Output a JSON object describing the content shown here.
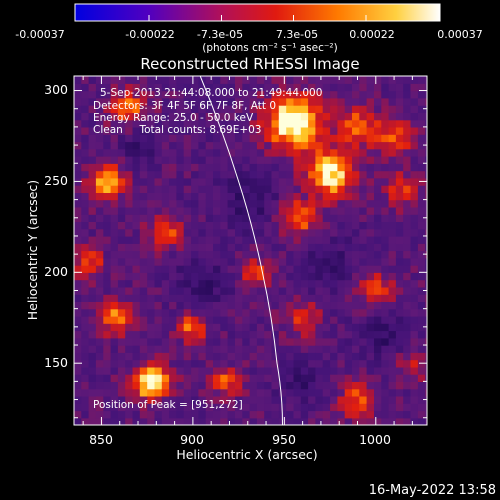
{
  "colorbar": {
    "ticks": [
      "-0.00037",
      "-0.00022",
      "-7.3e-05",
      "7.3e-05",
      "0.00022",
      "0.00037"
    ],
    "tick_values": [
      -0.00037,
      -0.00022,
      -7.3e-05,
      7.3e-05,
      0.00022,
      0.00037
    ],
    "range": [
      -0.00037,
      0.00037
    ],
    "unit_label": "(photons cm⁻² s⁻¹ asec⁻²)",
    "colors": [
      "#0000e0",
      "#6a00b0",
      "#b0105a",
      "#e01a10",
      "#ff7a00",
      "#ffd040",
      "#ffffff"
    ]
  },
  "chart_data": {
    "type": "heatmap",
    "title": "Reconstructed RHESSI Image",
    "xlabel": "Heliocentric X (arcsec)",
    "ylabel": "Heliocentric Y (arcsec)",
    "xlim": [
      835,
      1028
    ],
    "ylim": [
      116,
      308
    ],
    "xticks": [
      850,
      900,
      950,
      1000
    ],
    "yticks": [
      150,
      200,
      250,
      300
    ],
    "annotations": {
      "time_range": "5-Sep-2013 21:44:08.000 to 21:49:44.000",
      "detectors": "Detectors: 3F 4F 5F 6F 7F 8F, Att 0",
      "energy": "Energy Range: 25.0 - 50.0 keV",
      "method": "Clean     Total counts: 8.69E+03",
      "peak": "Position of Peak = [951,272]"
    },
    "peak": [
      951,
      272
    ],
    "limb_points": [
      [
        904,
        308
      ],
      [
        925,
        250
      ],
      [
        938,
        200
      ],
      [
        946,
        150
      ],
      [
        949,
        116
      ]
    ],
    "hot_spots": [
      {
        "x": 955,
        "y": 283,
        "r": 15,
        "level": 1.0
      },
      {
        "x": 976,
        "y": 255,
        "r": 13,
        "level": 0.85
      },
      {
        "x": 990,
        "y": 280,
        "r": 10,
        "level": 0.55
      },
      {
        "x": 1010,
        "y": 275,
        "r": 11,
        "level": 0.5
      },
      {
        "x": 1015,
        "y": 245,
        "r": 9,
        "level": 0.45
      },
      {
        "x": 958,
        "y": 230,
        "r": 10,
        "level": 0.6
      },
      {
        "x": 935,
        "y": 200,
        "r": 8,
        "level": 0.5
      },
      {
        "x": 960,
        "y": 175,
        "r": 9,
        "level": 0.45
      },
      {
        "x": 1000,
        "y": 190,
        "r": 10,
        "level": 0.45
      },
      {
        "x": 990,
        "y": 130,
        "r": 10,
        "level": 0.5
      },
      {
        "x": 877,
        "y": 140,
        "r": 10,
        "level": 0.9
      },
      {
        "x": 858,
        "y": 175,
        "r": 9,
        "level": 0.6
      },
      {
        "x": 900,
        "y": 170,
        "r": 8,
        "level": 0.55
      },
      {
        "x": 885,
        "y": 222,
        "r": 9,
        "level": 0.55
      },
      {
        "x": 853,
        "y": 250,
        "r": 10,
        "level": 0.65
      },
      {
        "x": 865,
        "y": 290,
        "r": 10,
        "level": 0.55
      },
      {
        "x": 843,
        "y": 205,
        "r": 8,
        "level": 0.5
      },
      {
        "x": 918,
        "y": 140,
        "r": 8,
        "level": 0.5
      },
      {
        "x": 1020,
        "y": 150,
        "r": 8,
        "level": 0.4
      }
    ],
    "cold_spots": [
      {
        "x": 930,
        "y": 240,
        "r": 16
      },
      {
        "x": 905,
        "y": 195,
        "r": 14
      },
      {
        "x": 975,
        "y": 205,
        "r": 14
      },
      {
        "x": 1005,
        "y": 165,
        "r": 13
      },
      {
        "x": 960,
        "y": 140,
        "r": 12
      },
      {
        "x": 870,
        "y": 270,
        "r": 10
      }
    ]
  },
  "footer": {
    "timestamp": "16-May-2022 13:58"
  }
}
